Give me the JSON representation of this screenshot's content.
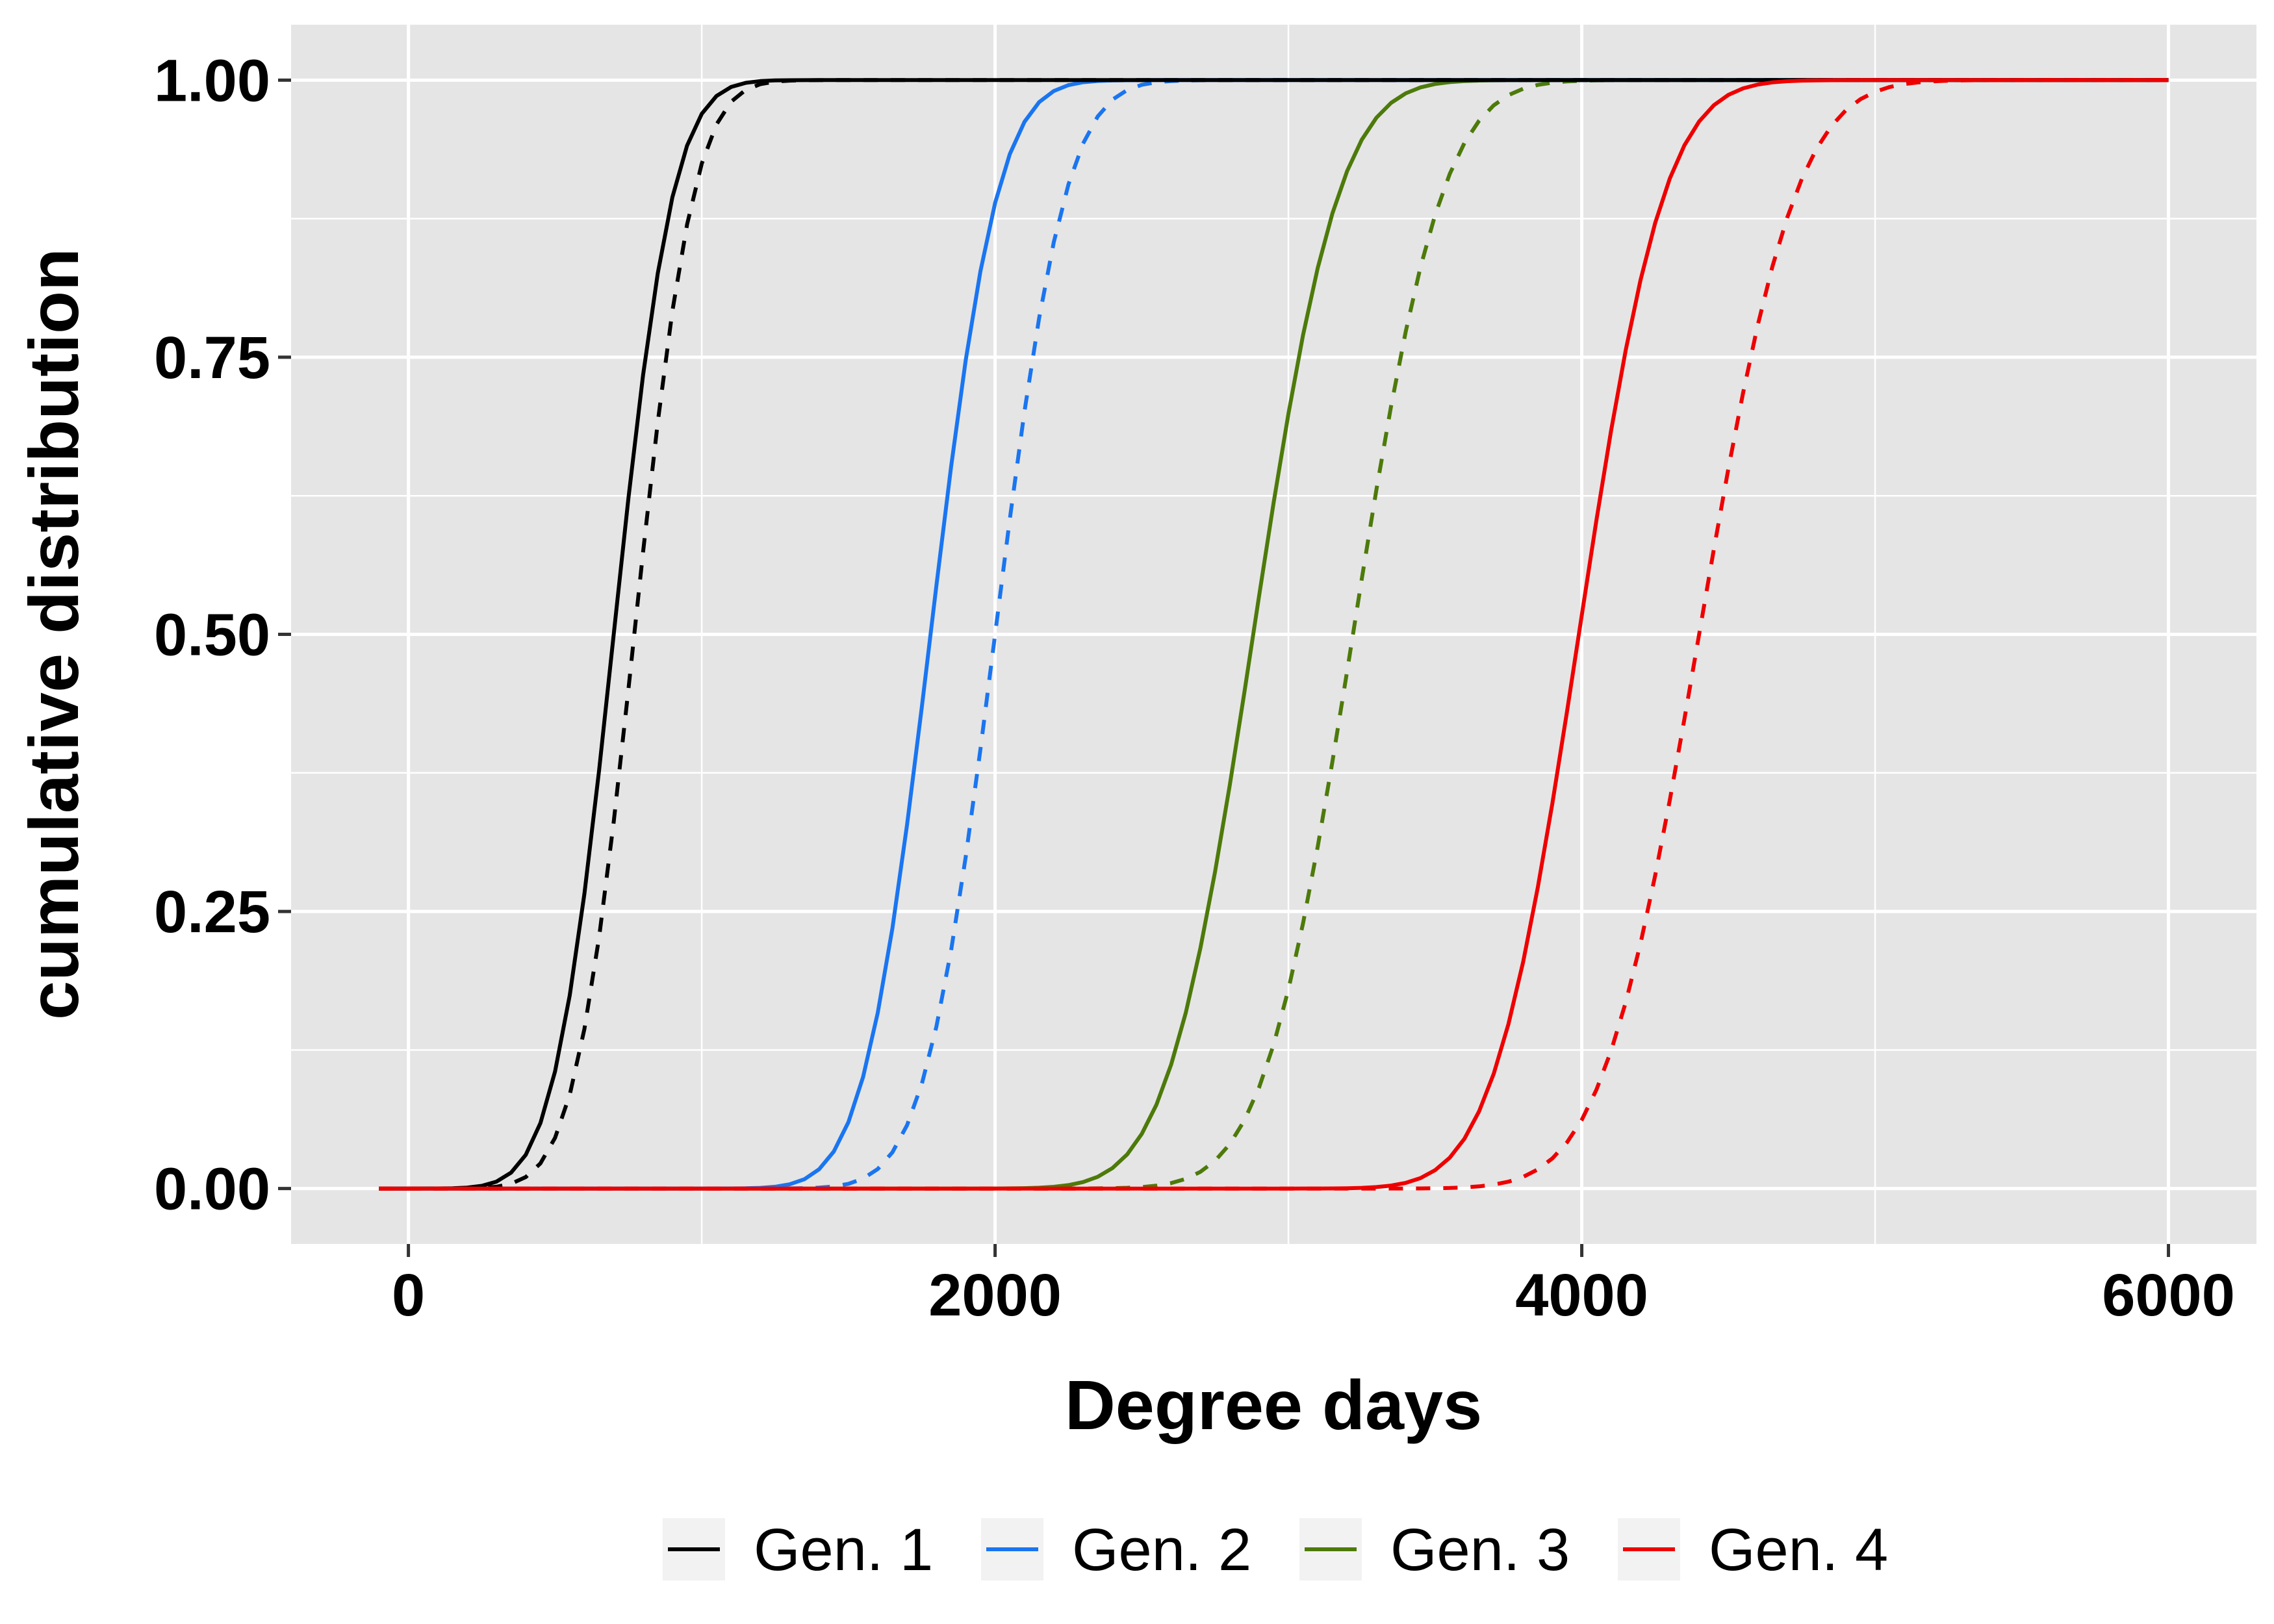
{
  "chart_data": {
    "type": "line",
    "title": "",
    "xlabel": "Degree days",
    "ylabel": "cumulative distribution",
    "xlim": [
      -400,
      6300
    ],
    "ylim": [
      -0.05,
      1.05
    ],
    "x_ticks": [
      0,
      2000,
      4000,
      6000
    ],
    "x_tick_labels": [
      "0",
      "2000",
      "4000",
      "6000"
    ],
    "y_ticks": [
      0,
      0.25,
      0.5,
      0.75,
      1
    ],
    "y_tick_labels": [
      "0.00",
      "0.25",
      "0.50",
      "0.75",
      "1.00"
    ],
    "x_range": [
      -100,
      6000
    ],
    "grid": true,
    "background_color": "#e5e5e5",
    "grid_color": "#ffffff",
    "legend_position": "bottom",
    "legend": [
      {
        "label": "Gen. 1",
        "color": "#000000"
      },
      {
        "label": "Gen. 2",
        "color": "#1a75f0"
      },
      {
        "label": "Gen. 3",
        "color": "#4d7a0a"
      },
      {
        "label": "Gen. 4",
        "color": "#ee0000"
      }
    ],
    "series": [
      {
        "group": "Gen. 1",
        "linetype": "solid",
        "color": "#000000",
        "mean": 700,
        "sd": 160
      },
      {
        "group": "Gen. 1",
        "linetype": "dashed",
        "color": "#000000",
        "mean": 770,
        "sd": 160
      },
      {
        "group": "Gen. 2",
        "linetype": "solid",
        "color": "#1a75f0",
        "mean": 1780,
        "sd": 180
      },
      {
        "group": "Gen. 2",
        "linetype": "dashed",
        "color": "#1a75f0",
        "mean": 2000,
        "sd": 190
      },
      {
        "group": "Gen. 3",
        "linetype": "solid",
        "color": "#4d7a0a",
        "mean": 2880,
        "sd": 230
      },
      {
        "group": "Gen. 3",
        "linetype": "dashed",
        "color": "#4d7a0a",
        "mean": 3220,
        "sd": 240
      },
      {
        "group": "Gen. 4",
        "linetype": "solid",
        "color": "#ee0000",
        "mean": 3990,
        "sd": 230
      },
      {
        "group": "Gen. 4",
        "linetype": "dashed",
        "color": "#ee0000",
        "mean": 4400,
        "sd": 260
      }
    ]
  }
}
